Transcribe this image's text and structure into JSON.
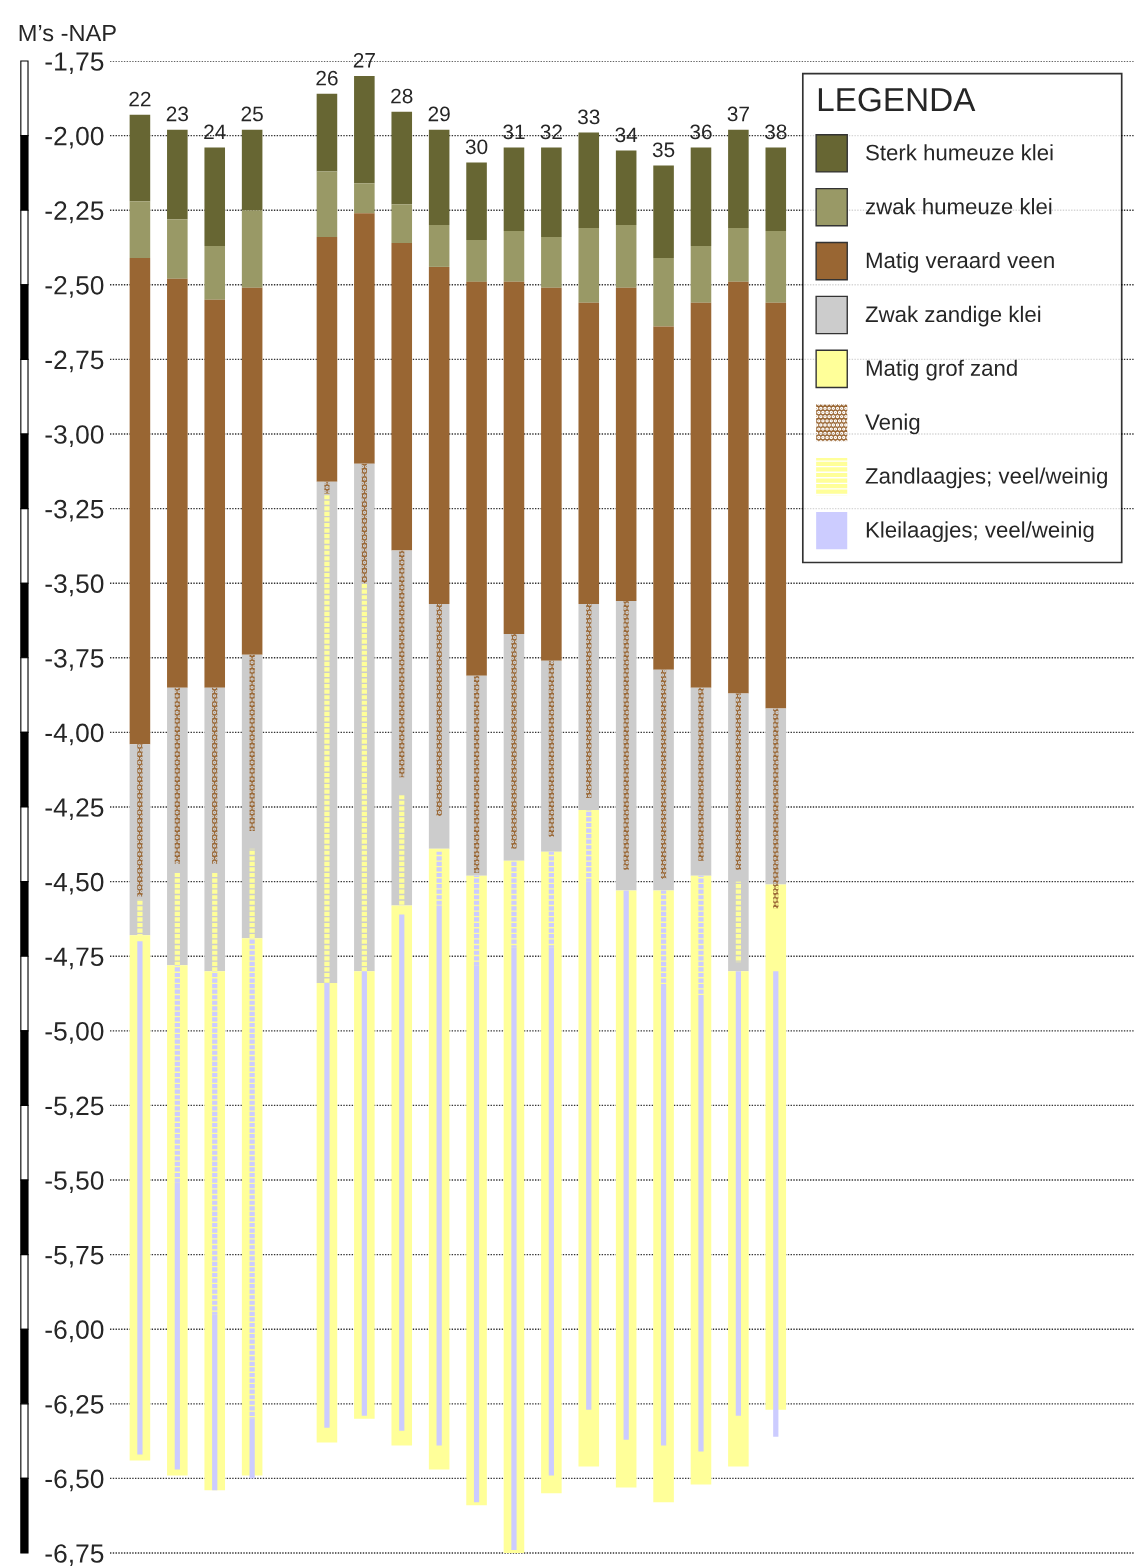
{
  "chart_data": {
    "type": "bar",
    "ylabel": "M’s -NAP",
    "legend_title": "LEGENDA",
    "legend": "top right",
    "grid": "y",
    "categories": [
      "22",
      "23",
      "24",
      "25",
      null,
      "26",
      "27",
      "28",
      "29",
      "30",
      "31",
      "32",
      "33",
      "34",
      "35",
      "36",
      "37",
      "38"
    ],
    "ylim": [
      -6.77,
      -1.75
    ],
    "yticks": [
      {
        "value": -1.75,
        "label": "-1,75"
      },
      {
        "value": -2.0,
        "label": "-2,00"
      },
      {
        "value": -2.25,
        "label": "-2,25"
      },
      {
        "value": -2.5,
        "label": "-2,50"
      },
      {
        "value": -2.75,
        "label": "-2,75"
      },
      {
        "value": -3.0,
        "label": "-3,00"
      },
      {
        "value": -3.25,
        "label": "-3,25"
      },
      {
        "value": -3.5,
        "label": "-3,50"
      },
      {
        "value": -3.75,
        "label": "-3,75"
      },
      {
        "value": -4.0,
        "label": "-4,00"
      },
      {
        "value": -4.25,
        "label": "-4,25"
      },
      {
        "value": -4.5,
        "label": "-4,50"
      },
      {
        "value": -4.75,
        "label": "-4,75"
      },
      {
        "value": -5.0,
        "label": "-5,00"
      },
      {
        "value": -5.25,
        "label": "-5,25"
      },
      {
        "value": -5.5,
        "label": "-5,50"
      },
      {
        "value": -5.75,
        "label": "-5,75"
      },
      {
        "value": -6.0,
        "label": "-6,00"
      },
      {
        "value": -6.25,
        "label": "-6,25"
      },
      {
        "value": -6.5,
        "label": "-6,50"
      },
      {
        "value": -6.75,
        "label": "-6,75"
      }
    ],
    "series": [
      {
        "name": "Sterk humeuze klei",
        "color": "#676633",
        "base": [
          -1.93,
          -1.98,
          -2.04,
          -1.98,
          null,
          -1.86,
          -1.8,
          -1.92,
          -1.98,
          -2.09,
          -2.04,
          -2.04,
          -1.99,
          -2.05,
          -2.1,
          -2.04,
          -1.98,
          -2.04
        ],
        "values": [
          -0.29,
          -0.3,
          -0.33,
          -0.27,
          null,
          -0.26,
          -0.36,
          -0.31,
          -0.32,
          -0.26,
          -0.28,
          -0.3,
          -0.32,
          -0.25,
          -0.31,
          -0.33,
          -0.33,
          -0.28
        ]
      },
      {
        "name": "zwak humeuze klei",
        "color": "#999966",
        "base": [
          -2.22,
          -2.28,
          -2.37,
          -2.25,
          null,
          -2.12,
          -2.16,
          -2.23,
          -2.3,
          -2.35,
          -2.32,
          -2.34,
          -2.31,
          -2.3,
          -2.41,
          -2.37,
          -2.31,
          -2.32
        ],
        "values": [
          -0.19,
          -0.2,
          -0.18,
          -0.26,
          null,
          -0.22,
          -0.1,
          -0.13,
          -0.14,
          -0.14,
          -0.17,
          -0.17,
          -0.25,
          -0.21,
          -0.23,
          -0.19,
          -0.18,
          -0.24
        ]
      },
      {
        "name": "Matig veraard veen",
        "color": "#996633",
        "base": [
          -2.41,
          -2.48,
          -2.55,
          -2.51,
          null,
          -2.34,
          -2.26,
          -2.36,
          -2.44,
          -2.49,
          -2.49,
          -2.51,
          -2.56,
          -2.51,
          -2.64,
          -2.56,
          -2.49,
          -2.56
        ],
        "values": [
          -1.63,
          -1.37,
          -1.3,
          -1.23,
          null,
          -0.82,
          -0.84,
          -1.03,
          -1.13,
          -1.32,
          -1.18,
          -1.25,
          -1.01,
          -1.05,
          -1.15,
          -1.29,
          -1.38,
          -1.36
        ]
      },
      {
        "name": "Zwak zandige klei",
        "color": "#cccccc",
        "base": [
          -4.04,
          -3.85,
          -3.85,
          -3.74,
          null,
          -3.16,
          -3.1,
          -3.39,
          -3.57,
          -3.81,
          -3.67,
          -3.76,
          -3.57,
          -3.56,
          -3.79,
          -3.85,
          -3.87,
          -3.92
        ],
        "values": [
          -0.64,
          -0.93,
          -0.95,
          -0.95,
          null,
          -1.68,
          -1.7,
          -1.19,
          -0.82,
          -0.67,
          -0.76,
          -0.64,
          -0.69,
          -0.97,
          -0.74,
          -0.63,
          -0.93,
          -0.59
        ]
      },
      {
        "name": "Matig grof zand",
        "color": "#ffff99",
        "base": [
          -4.68,
          -4.78,
          -4.8,
          -4.69,
          null,
          -4.84,
          -4.8,
          -4.58,
          -4.39,
          -4.48,
          -4.43,
          -4.4,
          -4.26,
          -4.53,
          -4.53,
          -4.48,
          -4.8,
          -4.51
        ],
        "values": [
          -1.76,
          -1.71,
          -1.74,
          -1.8,
          null,
          -1.54,
          -1.5,
          -1.81,
          -2.08,
          -2.11,
          -2.32,
          -2.15,
          -2.2,
          -2.0,
          -2.05,
          -2.04,
          -1.66,
          -1.76
        ]
      },
      {
        "name": "Venig",
        "color": "#996633",
        "line_style": "dotted",
        "base": [
          -4.04,
          -3.85,
          -3.85,
          -3.74,
          null,
          -3.16,
          -3.1,
          -3.39,
          -3.57,
          -3.81,
          -3.67,
          -3.76,
          -3.57,
          -3.56,
          -3.79,
          -3.85,
          -3.87,
          -3.92
        ],
        "values": [
          -0.51,
          -0.59,
          -0.59,
          -0.59,
          null,
          -0.04,
          -0.4,
          -0.76,
          -0.71,
          -0.66,
          -0.72,
          -0.59,
          -0.65,
          -0.9,
          -0.7,
          -0.58,
          -0.59,
          -0.67
        ]
      },
      {
        "name": "Zandlaagjes; veel/weinig",
        "color": "#ffff99",
        "line_style": "dashed",
        "base": [
          -4.56,
          -4.47,
          -4.47,
          -4.39,
          null,
          -3.2,
          -3.5,
          -4.21,
          null,
          null,
          null,
          null,
          null,
          null,
          null,
          null,
          -4.5,
          null
        ],
        "values": [
          -0.12,
          -0.31,
          -0.33,
          -0.3,
          null,
          -1.64,
          -1.3,
          -0.37,
          null,
          null,
          null,
          null,
          null,
          null,
          null,
          null,
          -0.27,
          null
        ]
      },
      {
        "name": "Kleilaagjes; veel/weinig",
        "color": "#ccccff",
        "line_style": "solid",
        "base": [
          -4.7,
          -5.51,
          -5.95,
          -6.3,
          null,
          -4.84,
          -4.8,
          -4.61,
          -4.58,
          -4.78,
          -4.72,
          -4.72,
          -4.5,
          -4.53,
          -4.85,
          -4.88,
          -4.8,
          -4.8
        ],
        "values": [
          -1.72,
          -0.96,
          -0.59,
          -0.2,
          null,
          -1.49,
          -1.49,
          -1.73,
          -1.81,
          -1.8,
          -2.02,
          -1.77,
          -1.77,
          -1.84,
          -1.54,
          -1.53,
          -1.49,
          -1.56
        ]
      },
      {
        "color": "#ccccff",
        "line_style": "dashed",
        "base": [
          null,
          -4.78,
          -4.8,
          -4.69,
          null,
          null,
          null,
          null,
          -4.4,
          -4.48,
          -4.43,
          -4.4,
          -4.26,
          null,
          -4.53,
          -4.48,
          null,
          null
        ],
        "values": [
          null,
          -0.73,
          -1.15,
          -1.61,
          null,
          null,
          null,
          null,
          -0.18,
          -0.3,
          -0.29,
          -0.32,
          -0.24,
          null,
          -0.32,
          -0.4,
          null,
          null
        ]
      }
    ]
  }
}
